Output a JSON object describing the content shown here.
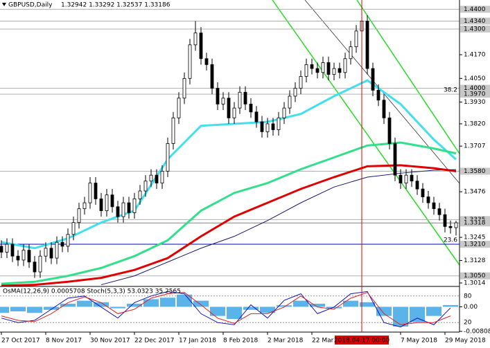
{
  "chart_data": {
    "type": "candlestick",
    "title": "GBPUSD,Daily",
    "title_values": "1.32942 1.33292 1.32537 1.33186",
    "categories": [
      "27 Oct 2017",
      null,
      null,
      null,
      null,
      null,
      null,
      null,
      "8 Nov 2017",
      null,
      null,
      null,
      null,
      null,
      null,
      null,
      "30 Nov 2017",
      null,
      null,
      null,
      null,
      null,
      null,
      null,
      "22 Dec 2017",
      null,
      null,
      null,
      null,
      null,
      null,
      null,
      "17 Jan 2018",
      null,
      null,
      null,
      null,
      null,
      null,
      null,
      "8 Feb 2018",
      null,
      null,
      null,
      null,
      null,
      null,
      null,
      "2 Mar 2018",
      null,
      null,
      null,
      null,
      null,
      null,
      null,
      "22 Mar 2018",
      null,
      null,
      null,
      null,
      null,
      null,
      null,
      null,
      "2018.04.17 00:00",
      null,
      null,
      null,
      null,
      null,
      null,
      "7 May 2018",
      null,
      null,
      null,
      null,
      null,
      null,
      null,
      "29 May 2018",
      null,
      null
    ],
    "crosshair_index": 65,
    "open": [
      1.32,
      1.317,
      1.321,
      1.315,
      1.313,
      1.318,
      1.312,
      1.307,
      1.315,
      1.319,
      1.314,
      1.322,
      1.32,
      1.326,
      1.332,
      1.339,
      1.342,
      1.352,
      1.344,
      1.338,
      1.346,
      1.34,
      1.335,
      1.342,
      1.337,
      1.344,
      1.348,
      1.353,
      1.356,
      1.352,
      1.358,
      1.372,
      1.385,
      1.395,
      1.405,
      1.422,
      1.428,
      1.415,
      1.412,
      1.4,
      1.392,
      1.395,
      1.385,
      1.39,
      1.398,
      1.392,
      1.388,
      1.383,
      1.378,
      1.382,
      1.379,
      1.385,
      1.39,
      1.396,
      1.4,
      1.406,
      1.412,
      1.41,
      1.408,
      1.413,
      1.407,
      1.41,
      1.408,
      1.415,
      1.421,
      1.429,
      1.434,
      1.41,
      1.399,
      1.394,
      1.385,
      1.372,
      1.356,
      1.352,
      1.356,
      1.353,
      1.349,
      1.345,
      1.342,
      1.339,
      1.336,
      1.33,
      1.3294
    ],
    "high": [
      1.323,
      1.324,
      1.324,
      1.318,
      1.321,
      1.321,
      1.315,
      1.318,
      1.322,
      1.322,
      1.325,
      1.325,
      1.329,
      1.335,
      1.342,
      1.345,
      1.355,
      1.355,
      1.347,
      1.349,
      1.349,
      1.343,
      1.345,
      1.345,
      1.347,
      1.351,
      1.356,
      1.359,
      1.359,
      1.361,
      1.375,
      1.388,
      1.398,
      1.408,
      1.425,
      1.434,
      1.431,
      1.418,
      1.415,
      1.403,
      1.398,
      1.398,
      1.393,
      1.401,
      1.401,
      1.395,
      1.391,
      1.386,
      1.385,
      1.385,
      1.388,
      1.393,
      1.399,
      1.403,
      1.409,
      1.415,
      1.415,
      1.413,
      1.416,
      1.416,
      1.413,
      1.413,
      1.418,
      1.424,
      1.432,
      1.4376,
      1.437,
      1.413,
      1.402,
      1.397,
      1.388,
      1.375,
      1.359,
      1.359,
      1.359,
      1.356,
      1.352,
      1.348,
      1.345,
      1.342,
      1.339,
      1.333,
      1.3329
    ],
    "low": [
      1.314,
      1.314,
      1.312,
      1.31,
      1.31,
      1.309,
      1.304,
      1.304,
      1.312,
      1.311,
      1.311,
      1.317,
      1.317,
      1.323,
      1.329,
      1.336,
      1.339,
      1.341,
      1.335,
      1.335,
      1.337,
      1.332,
      1.332,
      1.334,
      1.334,
      1.341,
      1.345,
      1.35,
      1.349,
      1.349,
      1.355,
      1.369,
      1.382,
      1.392,
      1.402,
      1.419,
      1.412,
      1.409,
      1.397,
      1.389,
      1.389,
      1.382,
      1.382,
      1.387,
      1.389,
      1.385,
      1.38,
      1.375,
      1.375,
      1.376,
      1.376,
      1.382,
      1.387,
      1.393,
      1.397,
      1.403,
      1.407,
      1.405,
      1.405,
      1.404,
      1.404,
      1.405,
      1.405,
      1.412,
      1.418,
      1.426,
      1.407,
      1.396,
      1.391,
      1.382,
      1.369,
      1.353,
      1.349,
      1.349,
      1.35,
      1.346,
      1.342,
      1.339,
      1.336,
      1.333,
      1.327,
      1.3264,
      1.3254
    ],
    "close": [
      1.317,
      1.321,
      1.315,
      1.313,
      1.318,
      1.312,
      1.307,
      1.315,
      1.319,
      1.314,
      1.322,
      1.32,
      1.326,
      1.332,
      1.339,
      1.342,
      1.352,
      1.344,
      1.338,
      1.346,
      1.34,
      1.335,
      1.342,
      1.337,
      1.344,
      1.348,
      1.353,
      1.356,
      1.352,
      1.358,
      1.372,
      1.385,
      1.395,
      1.405,
      1.422,
      1.428,
      1.415,
      1.412,
      1.4,
      1.392,
      1.395,
      1.385,
      1.39,
      1.398,
      1.392,
      1.388,
      1.383,
      1.378,
      1.382,
      1.379,
      1.385,
      1.39,
      1.396,
      1.4,
      1.406,
      1.412,
      1.41,
      1.408,
      1.413,
      1.407,
      1.41,
      1.408,
      1.415,
      1.421,
      1.429,
      1.434,
      1.41,
      1.399,
      1.394,
      1.385,
      1.372,
      1.356,
      1.352,
      1.356,
      1.353,
      1.349,
      1.345,
      1.342,
      1.339,
      1.336,
      1.33,
      1.3294,
      1.3319
    ],
    "ylim": [
      1.3,
      1.4447
    ],
    "yticks": [
      {
        "value": 1.417,
        "label": "1.4170"
      },
      {
        "value": 1.405,
        "label": "1.4050"
      },
      {
        "value": 1.393,
        "label": "1.3930"
      },
      {
        "value": 1.382,
        "label": "1.3820"
      },
      {
        "value": 1.3707,
        "label": "1.3707"
      },
      {
        "value": 1.3476,
        "label": "1.3476"
      },
      {
        "value": 1.3245,
        "label": "1.3245"
      },
      {
        "value": 1.3128,
        "label": "1.3128"
      },
      {
        "value": 1.3014,
        "label": "1.3014"
      }
    ],
    "levels": [
      {
        "value": 1.44,
        "label": "1.4400",
        "color": "#b0b0b0"
      },
      {
        "value": 1.434,
        "label": "1.4340",
        "color": "#b0b0b0"
      },
      {
        "value": 1.43,
        "label": "1.4300",
        "color": "#b0b0b0"
      },
      {
        "value": 1.4,
        "label": "1.4000",
        "color": "#b0b0b0"
      },
      {
        "value": 1.397,
        "label": "1.3970",
        "color": "#b0b0b0"
      },
      {
        "value": 1.358,
        "label": "1.3580",
        "color": "#b0b0b0"
      },
      {
        "value": 1.3335,
        "label": "1.3335",
        "color": "#b0b0b0"
      },
      {
        "value": 1.3318,
        "label": "1.3318",
        "color": "#808080"
      },
      {
        "value": 1.321,
        "label": "1.3210",
        "color": "#0000c8"
      },
      {
        "value": 1.305,
        "label": "1.3050",
        "color": "#b0b0b0"
      }
    ],
    "fib_labels": [
      {
        "value": 1.397,
        "label": "38.2"
      },
      {
        "value": 1.321,
        "label": "23.6"
      }
    ],
    "overlays": [
      {
        "color": "#40e0f0",
        "width": 3,
        "x": [
          0,
          6,
          12,
          18,
          24,
          30,
          36,
          42,
          48,
          54,
          60,
          66,
          72,
          78,
          82
        ],
        "values": [
          1.3221,
          1.319,
          1.324,
          1.332,
          1.338,
          1.3641,
          1.381,
          1.382,
          1.383,
          1.387,
          1.396,
          1.404,
          1.392,
          1.374,
          1.364
        ]
      },
      {
        "color": "#30e08a",
        "width": 3,
        "x": [
          0,
          6,
          12,
          18,
          24,
          30,
          36,
          42,
          48,
          54,
          60,
          66,
          72,
          78,
          82
        ],
        "values": [
          1.301,
          1.302,
          1.305,
          1.309,
          1.315,
          1.323,
          1.338,
          1.347,
          1.352,
          1.359,
          1.365,
          1.371,
          1.3725,
          1.3695,
          1.367
        ]
      },
      {
        "color": "#e00000",
        "width": 3,
        "x": [
          0,
          6,
          12,
          18,
          24,
          30,
          36,
          42,
          48,
          54,
          60,
          66,
          72,
          78,
          82
        ],
        "values": [
          1.3,
          1.3005,
          1.302,
          1.304,
          1.308,
          1.314,
          1.325,
          1.335,
          1.342,
          1.349,
          1.355,
          1.3605,
          1.361,
          1.3595,
          1.358
        ]
      },
      {
        "color": "#1a1a6e",
        "width": 1,
        "x": [
          18,
          24,
          30,
          36,
          42,
          48,
          54,
          60,
          66,
          72,
          78,
          82
        ],
        "values": [
          1.3005,
          1.305,
          1.312,
          1.319,
          1.325,
          1.333,
          1.342,
          1.35,
          1.355,
          1.357,
          1.3585,
          1.3588
        ]
      }
    ],
    "indicator": {
      "label": "OsMA(12,26,9) 0.0005708  Stoch(5,3,3) 53.0323 35.2565",
      "x": [
        0,
        3,
        6,
        9,
        12,
        15,
        18,
        21,
        24,
        27,
        30,
        33,
        36,
        39,
        42,
        45,
        48,
        51,
        54,
        57,
        60,
        63,
        66,
        69,
        72,
        75,
        78,
        81
      ],
      "osma": [
        -0.002,
        -0.0015,
        -0.002,
        -0.001,
        0.001,
        0.002,
        0.0015,
        -0.0005,
        0.001,
        0.0025,
        0.003,
        0.004,
        0.002,
        -0.003,
        -0.004,
        -0.001,
        -0.002,
        0.0005,
        0.002,
        0.001,
        -0.0005,
        0.002,
        0.0015,
        -0.003,
        -0.0065,
        -0.005,
        -0.003,
        0.00057
      ],
      "osma_color": "#5ab4ea",
      "osma_lim": [
        -0.00808,
        0.00646
      ],
      "stoch_k": [
        30,
        20,
        25,
        50,
        75,
        80,
        55,
        30,
        65,
        80,
        90,
        85,
        40,
        20,
        15,
        60,
        30,
        70,
        85,
        40,
        55,
        85,
        90,
        20,
        10,
        30,
        15,
        53
      ],
      "stoch_d": [
        35,
        25,
        22,
        40,
        65,
        78,
        65,
        40,
        50,
        75,
        85,
        88,
        60,
        30,
        18,
        40,
        40,
        55,
        80,
        55,
        50,
        75,
        88,
        40,
        15,
        20,
        20,
        35
      ],
      "k_color": "#1010c0",
      "d_color": "#e02020",
      "stoch_lim": [
        0,
        100
      ],
      "stoch_ticks": [
        80,
        20
      ],
      "osma_ticks": [
        {
          "value": 0,
          "label": "0.00"
        },
        {
          "value": -0.00808,
          "label": "-0.00808"
        }
      ]
    }
  }
}
